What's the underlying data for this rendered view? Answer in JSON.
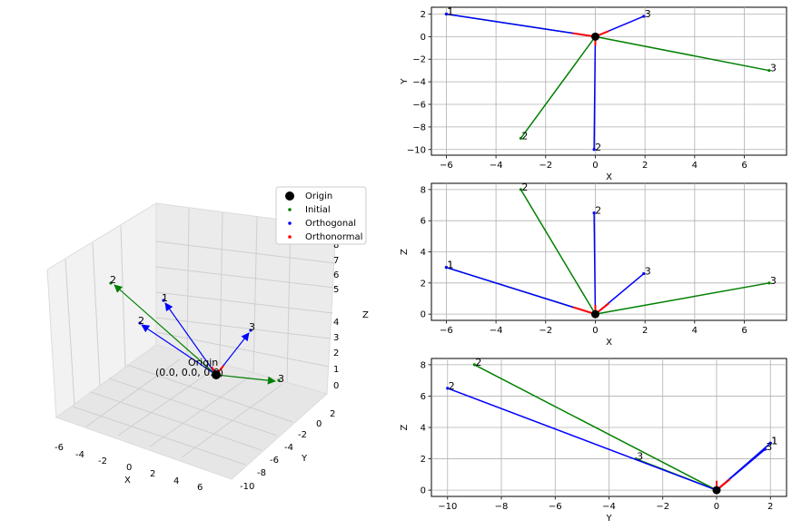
{
  "colors": {
    "initial": "#008000",
    "orthogonal": "#0000ff",
    "orthonormal": "#ff0000",
    "origin": "#000000",
    "grid": "#b0b0b0"
  },
  "chart_data": [
    {
      "id": "xy",
      "type": "line",
      "xlabel": "X",
      "ylabel": "Y",
      "xlim": [
        -6.6,
        7.7
      ],
      "ylim": [
        -10.5,
        2.6
      ],
      "xticks": [
        -6,
        -4,
        -2,
        0,
        2,
        4,
        6
      ],
      "yticks": [
        2,
        0,
        -2,
        -4,
        -6,
        -8,
        -10
      ],
      "grid": true,
      "series": [
        {
          "name": "Initial",
          "segments": [
            {
              "label": "1",
              "x": [
                0,
                -6
              ],
              "y": [
                0,
                2
              ]
            },
            {
              "label": "2",
              "x": [
                0,
                -3
              ],
              "y": [
                0,
                -9
              ]
            },
            {
              "label": "3",
              "x": [
                0,
                7
              ],
              "y": [
                0,
                -3
              ]
            }
          ]
        },
        {
          "name": "Orthogonal",
          "segments": [
            {
              "label": "1",
              "x": [
                0,
                -6
              ],
              "y": [
                0,
                2
              ]
            },
            {
              "label": "2",
              "x": [
                0,
                -0.05
              ],
              "y": [
                0,
                -10
              ]
            },
            {
              "label": "3",
              "x": [
                0,
                1.95
              ],
              "y": [
                0,
                1.8
              ]
            }
          ]
        },
        {
          "name": "Orthonormal",
          "segments": [
            {
              "x": [
                0,
                -0.9
              ],
              "y": [
                0,
                0.3
              ]
            },
            {
              "x": [
                0,
                0
              ],
              "y": [
                0,
                -0.8
              ]
            },
            {
              "x": [
                0,
                0.55
              ],
              "y": [
                0,
                0.5
              ]
            }
          ]
        }
      ]
    },
    {
      "id": "xz",
      "type": "line",
      "xlabel": "X",
      "ylabel": "Z",
      "xlim": [
        -6.6,
        7.7
      ],
      "ylim": [
        -0.4,
        8.4
      ],
      "xticks": [
        -6,
        -4,
        -2,
        0,
        2,
        4,
        6
      ],
      "yticks": [
        8,
        6,
        4,
        2,
        0
      ],
      "grid": true,
      "series": [
        {
          "name": "Initial",
          "segments": [
            {
              "label": "1",
              "x": [
                0,
                -6
              ],
              "y": [
                0,
                3
              ]
            },
            {
              "label": "2",
              "x": [
                0,
                -3
              ],
              "y": [
                0,
                8
              ]
            },
            {
              "label": "3",
              "x": [
                0,
                7
              ],
              "y": [
                0,
                2
              ]
            }
          ]
        },
        {
          "name": "Orthogonal",
          "segments": [
            {
              "label": "1",
              "x": [
                0,
                -6
              ],
              "y": [
                0,
                3
              ]
            },
            {
              "label": "2",
              "x": [
                0,
                -0.05
              ],
              "y": [
                0,
                6.5
              ]
            },
            {
              "label": "3",
              "x": [
                0,
                1.95
              ],
              "y": [
                0,
                2.6
              ]
            }
          ]
        },
        {
          "name": "Orthonormal",
          "segments": [
            {
              "x": [
                0,
                -0.9
              ],
              "y": [
                0,
                0.45
              ]
            },
            {
              "x": [
                0,
                0
              ],
              "y": [
                0,
                0.6
              ]
            },
            {
              "x": [
                0,
                0.55
              ],
              "y": [
                0,
                0.7
              ]
            }
          ]
        }
      ]
    },
    {
      "id": "yz",
      "type": "line",
      "xlabel": "Y",
      "ylabel": "Z",
      "xlim": [
        -10.6,
        2.6
      ],
      "ylim": [
        -0.4,
        8.4
      ],
      "xticks": [
        -10,
        -8,
        -6,
        -4,
        -2,
        0,
        2
      ],
      "yticks": [
        8,
        6,
        4,
        2,
        0
      ],
      "grid": true,
      "series": [
        {
          "name": "Initial",
          "segments": [
            {
              "label": "1",
              "x": [
                0,
                2
              ],
              "y": [
                0,
                3
              ]
            },
            {
              "label": "2",
              "x": [
                0,
                -9
              ],
              "y": [
                0,
                8
              ]
            },
            {
              "label": "3",
              "x": [
                0,
                -3
              ],
              "y": [
                0,
                2
              ]
            }
          ]
        },
        {
          "name": "Orthogonal",
          "segments": [
            {
              "label": "1",
              "x": [
                0,
                2
              ],
              "y": [
                0,
                3
              ]
            },
            {
              "label": "2",
              "x": [
                0,
                -10
              ],
              "y": [
                0,
                6.5
              ]
            },
            {
              "label": "3",
              "x": [
                0,
                1.8
              ],
              "y": [
                0,
                2.6
              ]
            }
          ]
        },
        {
          "name": "Orthonormal",
          "segments": [
            {
              "x": [
                0,
                0.3
              ],
              "y": [
                0,
                0.45
              ]
            },
            {
              "x": [
                0,
                0
              ],
              "y": [
                0,
                0.6
              ]
            },
            {
              "x": [
                0,
                0.5
              ],
              "y": [
                0,
                0.7
              ]
            }
          ]
        }
      ]
    },
    {
      "id": "3d",
      "type": "scatter",
      "xlabel": "X",
      "ylabel": "Y",
      "zlabel": "Z",
      "xticks": [
        -6,
        -4,
        -2,
        0,
        2,
        4,
        6
      ],
      "yticks": [
        2,
        0,
        -2,
        -4,
        -6,
        -8,
        -10
      ],
      "zticks": [
        8,
        7,
        6,
        5,
        4,
        3,
        2,
        1,
        0
      ],
      "legend": [
        "Origin",
        "Initial",
        "Orthogonal",
        "Orthonormal"
      ],
      "legend_position": "top-right",
      "origin_label": "Origin",
      "origin_coords": "(0.0, 0.0, 0.0)",
      "vector_labels": [
        "1",
        "2",
        "3",
        "2",
        "3"
      ]
    }
  ]
}
